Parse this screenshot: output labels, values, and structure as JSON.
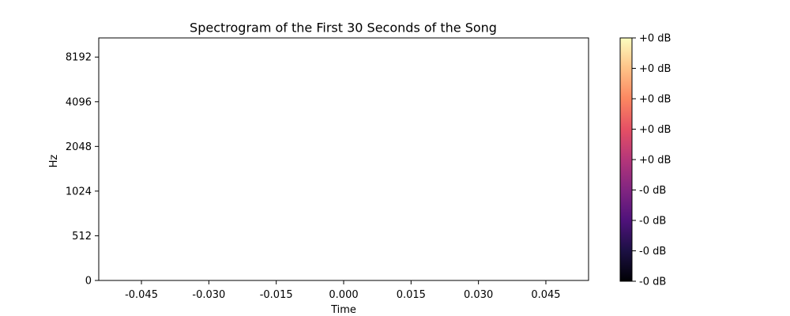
{
  "chart_data": {
    "type": "heatmap",
    "title": "Spectrogram of the First 30 Seconds of the Song",
    "xlabel": "Time",
    "ylabel": "Hz",
    "x_ticks": [
      -0.045,
      -0.03,
      -0.015,
      0.0,
      0.015,
      0.03,
      0.045
    ],
    "x_tick_labels": [
      "-0.045",
      "-0.030",
      "-0.015",
      "0.000",
      "0.015",
      "0.030",
      "0.045"
    ],
    "xlim": [
      -0.0545,
      0.0545
    ],
    "y_scale": "symlog (base 2)",
    "y_tick_labels": [
      "0",
      "512",
      "1024",
      "2048",
      "4096",
      "8192"
    ],
    "ylim": [
      0,
      11025
    ],
    "grid": false,
    "heatmap_values": [],
    "colorbar": {
      "colormap": "magma",
      "tick_labels": [
        "+0 dB",
        "+0 dB",
        "+0 dB",
        "+0 dB",
        "+0 dB",
        "-0 dB",
        "-0 dB",
        "-0 dB",
        "-0 dB"
      ],
      "colors": [
        "#000004",
        "#1c1044",
        "#4f127b",
        "#812581",
        "#b5367a",
        "#e55064",
        "#fb8761",
        "#fec287",
        "#fcfdbf"
      ]
    }
  }
}
